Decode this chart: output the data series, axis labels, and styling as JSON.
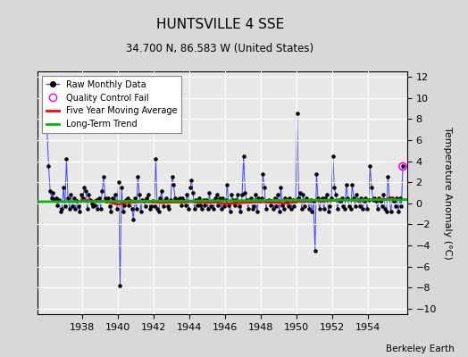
{
  "title": "HUNTSVILLE 4 SSE",
  "subtitle": "34.700 N, 86.583 W (United States)",
  "ylabel": "Temperature Anomaly (°C)",
  "credit": "Berkeley Earth",
  "xlim": [
    1935.5,
    1956.2
  ],
  "ylim": [
    -10.5,
    12.5
  ],
  "yticks": [
    -10,
    -8,
    -6,
    -4,
    -2,
    0,
    2,
    4,
    6,
    8,
    10,
    12
  ],
  "xticks": [
    1938,
    1940,
    1942,
    1944,
    1946,
    1948,
    1950,
    1952,
    1954
  ],
  "fig_bg_color": "#d8d8d8",
  "plot_bg_color": "#e8e8e8",
  "grid_color": "white",
  "raw_color": "#4444ff",
  "ma_color": "red",
  "trend_color": "#00bb00",
  "qc_color": "magenta",
  "raw_data": {
    "years": [
      1936.042,
      1936.125,
      1936.208,
      1936.292,
      1936.375,
      1936.458,
      1936.542,
      1936.625,
      1936.708,
      1936.792,
      1936.875,
      1936.958,
      1937.042,
      1937.125,
      1937.208,
      1937.292,
      1937.375,
      1937.458,
      1937.542,
      1937.625,
      1937.708,
      1937.792,
      1937.875,
      1937.958,
      1938.042,
      1938.125,
      1938.208,
      1938.292,
      1938.375,
      1938.458,
      1938.542,
      1938.625,
      1938.708,
      1938.792,
      1938.875,
      1938.958,
      1939.042,
      1939.125,
      1939.208,
      1939.292,
      1939.375,
      1939.458,
      1939.542,
      1939.625,
      1939.708,
      1939.792,
      1939.875,
      1939.958,
      1940.042,
      1940.125,
      1940.208,
      1940.292,
      1940.375,
      1940.458,
      1940.542,
      1940.625,
      1940.708,
      1940.792,
      1940.875,
      1940.958,
      1941.042,
      1941.125,
      1941.208,
      1941.292,
      1941.375,
      1941.458,
      1941.542,
      1941.625,
      1941.708,
      1941.792,
      1941.875,
      1941.958,
      1942.042,
      1942.125,
      1942.208,
      1942.292,
      1942.375,
      1942.458,
      1942.542,
      1942.625,
      1942.708,
      1942.792,
      1942.875,
      1942.958,
      1943.042,
      1943.125,
      1943.208,
      1943.292,
      1943.375,
      1943.458,
      1943.542,
      1943.625,
      1943.708,
      1943.792,
      1943.875,
      1943.958,
      1944.042,
      1944.125,
      1944.208,
      1944.292,
      1944.375,
      1944.458,
      1944.542,
      1944.625,
      1944.708,
      1944.792,
      1944.875,
      1944.958,
      1945.042,
      1945.125,
      1945.208,
      1945.292,
      1945.375,
      1945.458,
      1945.542,
      1945.625,
      1945.708,
      1945.792,
      1945.875,
      1945.958,
      1946.042,
      1946.125,
      1946.208,
      1946.292,
      1946.375,
      1946.458,
      1946.542,
      1946.625,
      1946.708,
      1946.792,
      1946.875,
      1946.958,
      1947.042,
      1947.125,
      1947.208,
      1947.292,
      1947.375,
      1947.458,
      1947.542,
      1947.625,
      1947.708,
      1947.792,
      1947.875,
      1947.958,
      1948.042,
      1948.125,
      1948.208,
      1948.292,
      1948.375,
      1948.458,
      1948.542,
      1948.625,
      1948.708,
      1948.792,
      1948.875,
      1948.958,
      1949.042,
      1949.125,
      1949.208,
      1949.292,
      1949.375,
      1949.458,
      1949.542,
      1949.625,
      1949.708,
      1949.792,
      1949.875,
      1949.958,
      1950.042,
      1950.125,
      1950.208,
      1950.292,
      1950.375,
      1950.458,
      1950.542,
      1950.625,
      1950.708,
      1950.792,
      1950.875,
      1950.958,
      1951.042,
      1951.125,
      1951.208,
      1951.292,
      1951.375,
      1951.458,
      1951.542,
      1951.625,
      1951.708,
      1951.792,
      1951.875,
      1951.958,
      1952.042,
      1952.125,
      1952.208,
      1952.292,
      1952.375,
      1952.458,
      1952.542,
      1952.625,
      1952.708,
      1952.792,
      1952.875,
      1952.958,
      1953.042,
      1953.125,
      1953.208,
      1953.292,
      1953.375,
      1953.458,
      1953.542,
      1953.625,
      1953.708,
      1953.792,
      1953.875,
      1953.958,
      1954.042,
      1954.125,
      1954.208,
      1954.292,
      1954.375,
      1954.458,
      1954.542,
      1954.625,
      1954.708,
      1954.792,
      1954.875,
      1954.958,
      1955.042,
      1955.125,
      1955.208,
      1955.292,
      1955.375,
      1955.458,
      1955.542,
      1955.625,
      1955.708,
      1955.792,
      1955.875,
      1955.958
    ],
    "values": [
      6.8,
      3.5,
      1.2,
      0.5,
      1.0,
      0.3,
      0.5,
      -0.2,
      0.3,
      -0.8,
      -0.5,
      1.5,
      -0.3,
      4.2,
      0.5,
      -0.5,
      0.8,
      -0.3,
      0.5,
      -0.5,
      0.2,
      -0.3,
      -0.8,
      0.8,
      0.5,
      1.5,
      1.2,
      -0.5,
      0.8,
      0.3,
      0.0,
      -0.3,
      -0.2,
      0.3,
      -0.5,
      0.5,
      -0.5,
      1.2,
      2.5,
      0.5,
      0.2,
      0.5,
      -0.3,
      -0.8,
      0.5,
      0.2,
      0.8,
      -0.5,
      2.0,
      -7.8,
      1.5,
      -0.8,
      -0.2,
      0.3,
      0.5,
      -0.2,
      0.2,
      -0.5,
      -1.5,
      0.5,
      -0.5,
      2.5,
      0.8,
      -0.8,
      0.3,
      0.2,
      -0.3,
      0.5,
      0.8,
      -0.5,
      -0.3,
      0.2,
      -0.3,
      4.2,
      -0.5,
      -0.8,
      0.5,
      1.2,
      -0.3,
      0.2,
      0.5,
      -0.3,
      -0.5,
      0.3,
      2.5,
      1.8,
      0.5,
      0.3,
      0.2,
      0.5,
      -0.2,
      0.5,
      0.2,
      -0.2,
      0.8,
      -0.5,
      1.5,
      2.2,
      1.0,
      -0.5,
      0.3,
      -0.2,
      0.5,
      -0.2,
      -0.5,
      0.3,
      -0.2,
      0.3,
      -0.5,
      1.0,
      -0.3,
      0.2,
      -0.5,
      0.5,
      0.8,
      -0.2,
      0.5,
      -0.5,
      0.5,
      -0.3,
      0.3,
      1.8,
      -0.2,
      -0.8,
      0.8,
      0.3,
      -0.2,
      0.3,
      0.8,
      -0.3,
      -0.8,
      0.8,
      4.5,
      1.0,
      0.3,
      -0.5,
      0.3,
      0.5,
      -0.5,
      -0.3,
      0.8,
      -0.8,
      0.5,
      0.2,
      0.5,
      2.8,
      1.5,
      -0.5,
      0.2,
      0.3,
      -0.2,
      0.2,
      -0.5,
      0.5,
      -0.3,
      0.8,
      -0.8,
      1.5,
      -0.2,
      -0.5,
      0.5,
      0.2,
      -0.3,
      0.5,
      -0.5,
      0.3,
      -0.3,
      0.2,
      8.5,
      0.5,
      1.0,
      -0.5,
      0.8,
      -0.3,
      0.5,
      0.3,
      -0.5,
      0.3,
      -0.8,
      0.2,
      -4.5,
      2.8,
      0.5,
      -0.5,
      0.3,
      0.5,
      -0.5,
      0.5,
      0.8,
      -0.8,
      -0.3,
      0.5,
      4.5,
      1.5,
      0.8,
      -0.5,
      0.3,
      0.2,
      0.5,
      -0.3,
      -0.5,
      1.8,
      0.5,
      -0.3,
      -0.5,
      1.8,
      0.5,
      -0.3,
      0.8,
      0.3,
      -0.3,
      0.5,
      -0.5,
      0.2,
      0.5,
      -0.5,
      0.3,
      3.5,
      1.5,
      0.3,
      0.5,
      0.2,
      -0.5,
      0.5,
      0.2,
      -0.3,
      0.8,
      -0.5,
      -0.8,
      2.5,
      0.5,
      -0.8,
      0.5,
      0.2,
      -0.3,
      0.5,
      -0.8,
      0.5,
      -0.3,
      3.5
    ]
  },
  "qc_fail_years": [
    1955.958
  ],
  "qc_fail_values": [
    3.5
  ],
  "moving_avg_years": [
    1938.0,
    1938.5,
    1939.0,
    1939.5,
    1940.0,
    1940.5,
    1941.0,
    1941.5,
    1942.0,
    1942.5,
    1943.0,
    1943.5,
    1944.0,
    1944.5,
    1945.0,
    1945.5,
    1946.0,
    1946.5,
    1947.0,
    1947.5,
    1948.0,
    1948.5,
    1949.0,
    1949.5,
    1950.0,
    1950.5,
    1951.0,
    1951.5,
    1952.0,
    1952.5,
    1953.0,
    1953.5,
    1954.0,
    1954.5,
    1955.0,
    1955.5
  ],
  "moving_avg_values": [
    0.3,
    0.25,
    0.2,
    0.1,
    -0.1,
    0.05,
    0.1,
    0.15,
    0.1,
    0.05,
    0.1,
    0.1,
    0.15,
    0.1,
    0.05,
    0.1,
    -0.05,
    0.0,
    0.05,
    0.1,
    0.15,
    0.1,
    0.05,
    0.0,
    0.15,
    0.2,
    0.25,
    0.2,
    0.25,
    0.3,
    0.3,
    0.25,
    0.3,
    0.4,
    0.4,
    0.45
  ],
  "trend_years": [
    1935.5,
    1956.2
  ],
  "trend_values": [
    0.15,
    0.35
  ]
}
